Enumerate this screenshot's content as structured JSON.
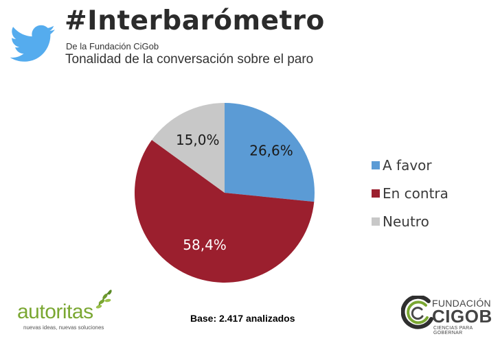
{
  "header": {
    "title": "#Interbarómetro",
    "organization": "De la Fundación CiGob",
    "subtitle": "Tonalidad de la conversación sobre el paro"
  },
  "icons": {
    "header_logo": "twitter-bird-icon",
    "left_logo": "autoritas-logo",
    "right_logo": "fundacion-cigob-logo"
  },
  "chart_data": {
    "type": "pie",
    "categories": [
      "A favor",
      "En contra",
      "Neutro"
    ],
    "values": [
      26.6,
      58.4,
      15.0
    ],
    "labels": [
      "26,6%",
      "58,4%",
      "15,0%"
    ],
    "colors": [
      "#5b9bd5",
      "#9b1f2e",
      "#c8c8c8"
    ],
    "label_colors": [
      "#1a1a1a",
      "#ffffff",
      "#1a1a1a"
    ],
    "start_angle_deg": 0,
    "direction": "clockwise",
    "legend_position": "right"
  },
  "footer": {
    "base_note": "Base: 2.417 analizados",
    "autoritas": {
      "name": "autoritas",
      "tagline": "nuevas ideas, nuevas soluciones"
    },
    "cigob": {
      "line1": "FUNDACIÓN",
      "line2": "CIGOB",
      "line3": "CIENCIAS PARA GOBERNAR"
    }
  }
}
